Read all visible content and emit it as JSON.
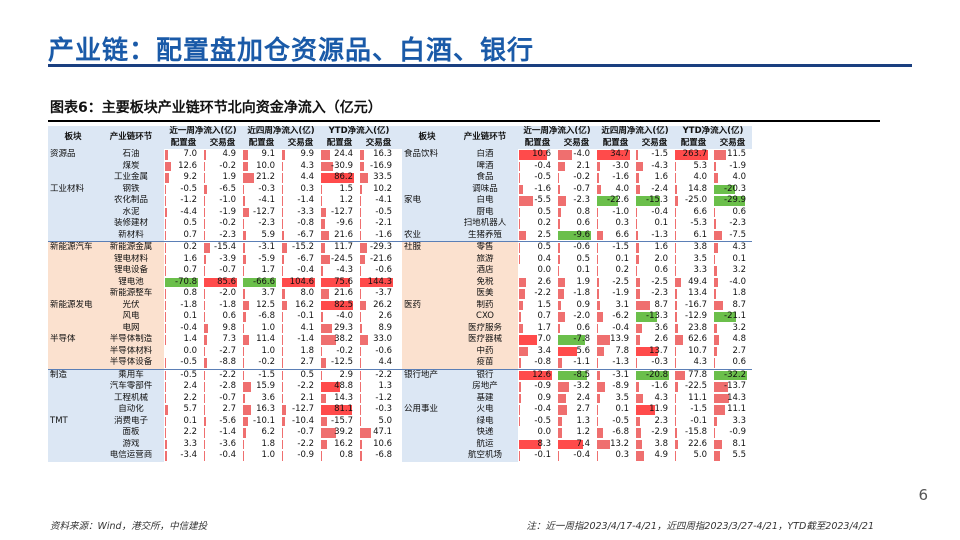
{
  "title": "产业链：配置盘加仓资源品、白酒、银行",
  "figure_title": "图表6：主要板块产业链环节北向资金净流入（亿元）",
  "page_number": "6",
  "footer": {
    "source": "资料来源：Wind，港交所，中信建投",
    "note": "注：近一周指2023/4/17-4/21，近四周指2023/3/27-4/21，YTD截至2023/4/21"
  },
  "colors": {
    "title": "#1a5aa8",
    "bar": "#ef6f6f",
    "bar_pos_big": "#ff4b4b",
    "bar_neg": "#6bbf4b",
    "header_bg": "#dce7f4",
    "group_alt_bg": "#fbe1cf"
  },
  "headers": {
    "sector": "板块",
    "chain": "产业链环节",
    "week": "近一周净流入(亿)",
    "month": "近四周净流入(亿)",
    "ytd": "YTD净流入(亿)",
    "alloc": "配置盘",
    "trade": "交易盘"
  },
  "left_rows": [
    {
      "sector": "资源品",
      "chain": "石油",
      "v": [
        "7.0",
        "4.9",
        "9.1",
        "9.9",
        "24.4",
        "16.3"
      ],
      "grp": "a"
    },
    {
      "sector": "",
      "chain": "煤炭",
      "v": [
        "12.6",
        "-0.2",
        "10.0",
        "4.3",
        "-30.9",
        "-16.9"
      ],
      "grp": "a"
    },
    {
      "sector": "",
      "chain": "工业金属",
      "v": [
        "9.2",
        "1.9",
        "21.2",
        "4.4",
        "86.2",
        "33.5"
      ],
      "grp": "a"
    },
    {
      "sector": "工业材料",
      "chain": "钢铁",
      "v": [
        "-0.5",
        "-6.5",
        "-0.3",
        "0.3",
        "1.5",
        "10.2"
      ],
      "grp": "a"
    },
    {
      "sector": "",
      "chain": "农化制品",
      "v": [
        "-1.2",
        "-1.0",
        "-4.1",
        "-1.4",
        "1.2",
        "-4.1"
      ],
      "grp": "a"
    },
    {
      "sector": "",
      "chain": "水泥",
      "v": [
        "-4.4",
        "-1.9",
        "-12.7",
        "-3.3",
        "-12.7",
        "-0.5"
      ],
      "grp": "a"
    },
    {
      "sector": "",
      "chain": "装修建材",
      "v": [
        "0.5",
        "-0.2",
        "-2.3",
        "-0.8",
        "-9.6",
        "-2.1"
      ],
      "grp": "a"
    },
    {
      "sector": "",
      "chain": "新材料",
      "v": [
        "0.7",
        "-2.3",
        "5.9",
        "-6.7",
        "21.6",
        "-1.6"
      ],
      "grp": "a"
    },
    {
      "sector": "新能源汽车",
      "chain": "新能源金属",
      "v": [
        "0.2",
        "-15.4",
        "-3.1",
        "-15.2",
        "11.7",
        "-29.3"
      ],
      "grp": "b"
    },
    {
      "sector": "",
      "chain": "锂电材料",
      "v": [
        "1.6",
        "-3.9",
        "-5.9",
        "-6.7",
        "-24.5",
        "-21.6"
      ],
      "grp": "b"
    },
    {
      "sector": "",
      "chain": "锂电设备",
      "v": [
        "0.7",
        "-0.7",
        "1.7",
        "-0.4",
        "-4.3",
        "-0.6"
      ],
      "grp": "b"
    },
    {
      "sector": "",
      "chain": "锂电池",
      "v": [
        "-70.8",
        "85.6",
        "-66.6",
        "104.6",
        "75.6",
        "144.3"
      ],
      "grp": "b"
    },
    {
      "sector": "",
      "chain": "新能源整车",
      "v": [
        "0.8",
        "-2.0",
        "3.7",
        "8.0",
        "21.6",
        "-3.7"
      ],
      "grp": "b"
    },
    {
      "sector": "新能源发电",
      "chain": "光伏",
      "v": [
        "-1.8",
        "-1.8",
        "12.5",
        "16.2",
        "82.5",
        "26.2"
      ],
      "grp": "b"
    },
    {
      "sector": "",
      "chain": "风电",
      "v": [
        "0.1",
        "0.6",
        "-6.8",
        "-0.1",
        "-4.0",
        "2.6"
      ],
      "grp": "b"
    },
    {
      "sector": "",
      "chain": "电网",
      "v": [
        "-0.4",
        "9.8",
        "1.0",
        "4.1",
        "29.3",
        "8.9"
      ],
      "grp": "b"
    },
    {
      "sector": "半导体",
      "chain": "半导体制造",
      "v": [
        "1.4",
        "7.3",
        "11.4",
        "-1.4",
        "38.2",
        "33.0"
      ],
      "grp": "b"
    },
    {
      "sector": "",
      "chain": "半导体材料",
      "v": [
        "0.0",
        "-2.7",
        "1.0",
        "1.8",
        "-0.2",
        "-0.6"
      ],
      "grp": "b"
    },
    {
      "sector": "",
      "chain": "半导体设备",
      "v": [
        "-0.5",
        "-8.8",
        "-0.2",
        "2.7",
        "-12.5",
        "4.4"
      ],
      "grp": "b"
    },
    {
      "sector": "制造",
      "chain": "乘用车",
      "v": [
        "-0.5",
        "-2.2",
        "-1.5",
        "0.5",
        "2.9",
        "-2.2"
      ],
      "grp": "a"
    },
    {
      "sector": "",
      "chain": "汽车零部件",
      "v": [
        "2.4",
        "-2.8",
        "15.9",
        "-2.2",
        "48.8",
        "1.3"
      ],
      "grp": "a"
    },
    {
      "sector": "",
      "chain": "工程机械",
      "v": [
        "2.2",
        "-0.7",
        "3.6",
        "2.1",
        "14.3",
        "-1.2"
      ],
      "grp": "a"
    },
    {
      "sector": "",
      "chain": "自动化",
      "v": [
        "5.7",
        "2.7",
        "16.3",
        "-12.7",
        "81.1",
        "-0.3"
      ],
      "grp": "a"
    },
    {
      "sector": "TMT",
      "chain": "消费电子",
      "v": [
        "0.1",
        "-5.6",
        "-10.1",
        "-10.4",
        "-15.7",
        "5.0"
      ],
      "grp": "a"
    },
    {
      "sector": "",
      "chain": "面板",
      "v": [
        "2.2",
        "-1.4",
        "6.2",
        "-0.7",
        "39.2",
        "47.1"
      ],
      "grp": "a"
    },
    {
      "sector": "",
      "chain": "游戏",
      "v": [
        "3.3",
        "-3.6",
        "1.8",
        "-2.2",
        "16.2",
        "10.6"
      ],
      "grp": "a"
    },
    {
      "sector": "",
      "chain": "电信运营商",
      "v": [
        "-3.4",
        "-0.4",
        "1.0",
        "-0.9",
        "0.8",
        "-6.8"
      ],
      "grp": "a"
    }
  ],
  "right_rows": [
    {
      "sector": "食品饮料",
      "chain": "白酒",
      "v": [
        "10.6",
        "-4.0",
        "34.7",
        "-1.5",
        "263.7",
        "11.5"
      ],
      "grp": "a"
    },
    {
      "sector": "",
      "chain": "啤酒",
      "v": [
        "-0.4",
        "2.1",
        "-3.0",
        "-4.3",
        "5.3",
        "-1.9"
      ],
      "grp": "a"
    },
    {
      "sector": "",
      "chain": "食品",
      "v": [
        "-0.5",
        "-0.2",
        "-1.6",
        "1.6",
        "4.0",
        "4.0"
      ],
      "grp": "a"
    },
    {
      "sector": "",
      "chain": "调味品",
      "v": [
        "-1.6",
        "-0.7",
        "4.0",
        "-2.4",
        "14.8",
        "-20.3"
      ],
      "grp": "a"
    },
    {
      "sector": "家电",
      "chain": "白电",
      "v": [
        "-5.5",
        "-2.3",
        "-22.6",
        "-15.3",
        "-25.0",
        "-29.9"
      ],
      "grp": "a"
    },
    {
      "sector": "",
      "chain": "厨电",
      "v": [
        "0.5",
        "0.8",
        "-1.0",
        "-0.4",
        "6.6",
        "0.6"
      ],
      "grp": "a"
    },
    {
      "sector": "",
      "chain": "扫地机器人",
      "v": [
        "0.2",
        "0.6",
        "0.3",
        "0.1",
        "-5.3",
        "-2.3"
      ],
      "grp": "a"
    },
    {
      "sector": "农业",
      "chain": "生猪养殖",
      "v": [
        "2.5",
        "-9.6",
        "6.6",
        "-1.3",
        "6.1",
        "-7.5"
      ],
      "grp": "a"
    },
    {
      "sector": "社服",
      "chain": "零售",
      "v": [
        "0.5",
        "-0.6",
        "-1.5",
        "1.6",
        "3.8",
        "4.3"
      ],
      "grp": "b"
    },
    {
      "sector": "",
      "chain": "旅游",
      "v": [
        "0.4",
        "0.5",
        "0.1",
        "2.0",
        "3.5",
        "0.1"
      ],
      "grp": "b"
    },
    {
      "sector": "",
      "chain": "酒店",
      "v": [
        "0.0",
        "0.1",
        "0.2",
        "0.6",
        "3.3",
        "3.2"
      ],
      "grp": "b"
    },
    {
      "sector": "",
      "chain": "免税",
      "v": [
        "2.6",
        "1.9",
        "-2.5",
        "-2.5",
        "49.4",
        "-4.0"
      ],
      "grp": "b"
    },
    {
      "sector": "",
      "chain": "医美",
      "v": [
        "-2.2",
        "-1.8",
        "-1.9",
        "-2.3",
        "13.4",
        "1.8"
      ],
      "grp": "b"
    },
    {
      "sector": "医药",
      "chain": "制药",
      "v": [
        "1.5",
        "0.9",
        "3.1",
        "8.7",
        "-16.7",
        "8.7"
      ],
      "grp": "b"
    },
    {
      "sector": "",
      "chain": "CXO",
      "v": [
        "0.7",
        "-2.0",
        "-6.2",
        "-13.3",
        "-12.9",
        "-21.1"
      ],
      "grp": "b"
    },
    {
      "sector": "",
      "chain": "医疗服务",
      "v": [
        "1.7",
        "0.6",
        "-0.4",
        "3.6",
        "23.8",
        "3.2"
      ],
      "grp": "b"
    },
    {
      "sector": "",
      "chain": "医疗器械",
      "v": [
        "7.0",
        "-7.8",
        "13.9",
        "2.6",
        "62.6",
        "4.8"
      ],
      "grp": "b"
    },
    {
      "sector": "",
      "chain": "中药",
      "v": [
        "3.4",
        "5.6",
        "7.8",
        "13.7",
        "10.7",
        "2.7"
      ],
      "grp": "b"
    },
    {
      "sector": "",
      "chain": "疫苗",
      "v": [
        "-0.8",
        "-1.1",
        "-1.3",
        "-0.3",
        "4.3",
        "0.6"
      ],
      "grp": "b"
    },
    {
      "sector": "银行地产",
      "chain": "银行",
      "v": [
        "12.6",
        "-8.5",
        "-3.1",
        "-20.8",
        "77.8",
        "-32.2"
      ],
      "grp": "a"
    },
    {
      "sector": "",
      "chain": "房地产",
      "v": [
        "-0.9",
        "-3.2",
        "-8.9",
        "-1.6",
        "-22.5",
        "-13.7"
      ],
      "grp": "a"
    },
    {
      "sector": "",
      "chain": "基建",
      "v": [
        "0.9",
        "2.4",
        "3.5",
        "4.3",
        "11.1",
        "14.3"
      ],
      "grp": "a"
    },
    {
      "sector": "公用事业",
      "chain": "火电",
      "v": [
        "-0.4",
        "2.7",
        "0.1",
        "11.9",
        "-1.5",
        "11.1"
      ],
      "grp": "a"
    },
    {
      "sector": "",
      "chain": "绿电",
      "v": [
        "-0.5",
        "1.3",
        "-0.5",
        "2.3",
        "-0.1",
        "3.3"
      ],
      "grp": "a"
    },
    {
      "sector": "",
      "chain": "快递",
      "v": [
        "0.0",
        "1.2",
        "-6.8",
        "-2.9",
        "-15.8",
        "-0.9"
      ],
      "grp": "a"
    },
    {
      "sector": "",
      "chain": "航运",
      "v": [
        "8.3",
        "7.4",
        "13.2",
        "3.8",
        "22.6",
        "8.1"
      ],
      "grp": "a"
    },
    {
      "sector": "",
      "chain": "航空机场",
      "v": [
        "-0.1",
        "-0.4",
        "0.3",
        "4.9",
        "5.0",
        "5.5"
      ],
      "grp": "a"
    }
  ]
}
